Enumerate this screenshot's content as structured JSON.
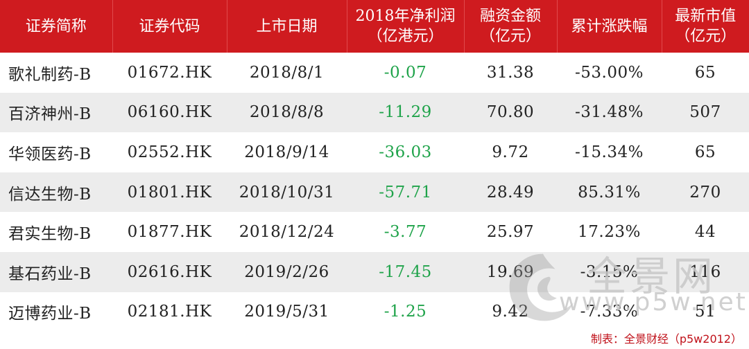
{
  "table": {
    "headers": [
      {
        "line1": "证券简称",
        "line2": ""
      },
      {
        "line1": "证券代码",
        "line2": ""
      },
      {
        "line1": "上市日期",
        "line2": ""
      },
      {
        "line1": "2018年净利润",
        "line2": "（亿港元）"
      },
      {
        "line1": "融资金额",
        "line2": "（亿元）"
      },
      {
        "line1": "累计涨跌幅",
        "line2": ""
      },
      {
        "line1": "最新市值",
        "line2": "（亿元）"
      }
    ],
    "rows": [
      {
        "name": "歌礼制药-B",
        "code": "01672.HK",
        "date": "2018/8/1",
        "profit": "-0.07",
        "financing": "31.38",
        "change": "-53.00%",
        "market_cap": "65"
      },
      {
        "name": "百济神州-B",
        "code": "06160.HK",
        "date": "2018/8/8",
        "profit": "-11.29",
        "financing": "70.80",
        "change": "-31.48%",
        "market_cap": "507"
      },
      {
        "name": "华领医药-B",
        "code": "02552.HK",
        "date": "2018/9/14",
        "profit": "-36.03",
        "financing": "9.72",
        "change": "-15.34%",
        "market_cap": "65"
      },
      {
        "name": "信达生物-B",
        "code": "01801.HK",
        "date": "2018/10/31",
        "profit": "-57.71",
        "financing": "28.49",
        "change": "85.31%",
        "market_cap": "270"
      },
      {
        "name": "君实生物-B",
        "code": "01877.HK",
        "date": "2018/12/24",
        "profit": "-3.77",
        "financing": "25.97",
        "change": "17.23%",
        "market_cap": "44"
      },
      {
        "name": "基石药业-B",
        "code": "02616.HK",
        "date": "2019/2/26",
        "profit": "-17.45",
        "financing": "19.69",
        "change": "-3.15%",
        "market_cap": "116"
      },
      {
        "name": "迈博药业-B",
        "code": "02181.HK",
        "date": "2019/5/31",
        "profit": "-1.25",
        "financing": "9.42",
        "change": "-7.33%",
        "market_cap": "51"
      }
    ]
  },
  "watermark": {
    "brand": "全景网",
    "url": "www.p5w.net"
  },
  "footer": {
    "credit": "制表：全景财经（p5w2012）"
  },
  "colors": {
    "header_bg": "#cf1b1f",
    "header_text": "#ffffff",
    "profit_text": "#1fa34a",
    "stripe": "#ececec",
    "credit_text": "#c0111a"
  }
}
